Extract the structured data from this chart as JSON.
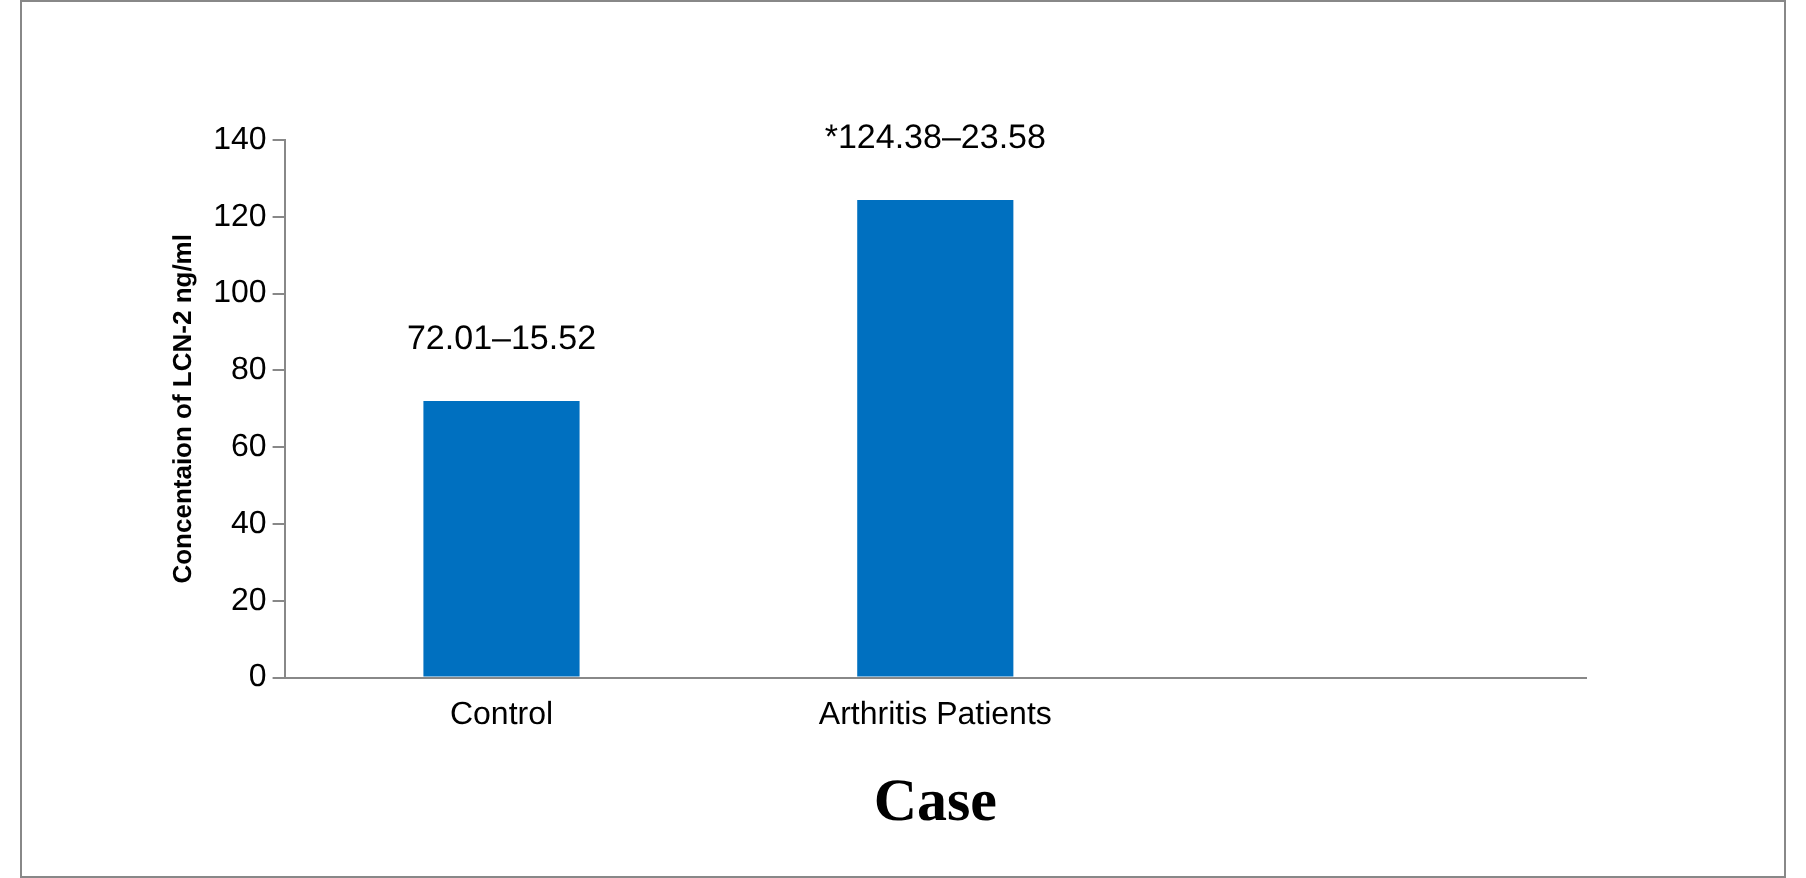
{
  "chart_data": {
    "type": "bar",
    "xlabel": "Case",
    "ylabel": "Concentaion of LCN-2 ng/ml",
    "categories": [
      "Control",
      "Arthritis Patients",
      null
    ],
    "values": [
      72.01,
      124.38,
      null
    ],
    "value_labels": [
      "72.01–15.52",
      "*124.38–23.58",
      null
    ],
    "color": "#0070c0",
    "ylim": [
      0,
      140
    ],
    "yticks": [
      0,
      20,
      40,
      60,
      80,
      100,
      120,
      140
    ],
    "grid": false,
    "legend": false
  }
}
